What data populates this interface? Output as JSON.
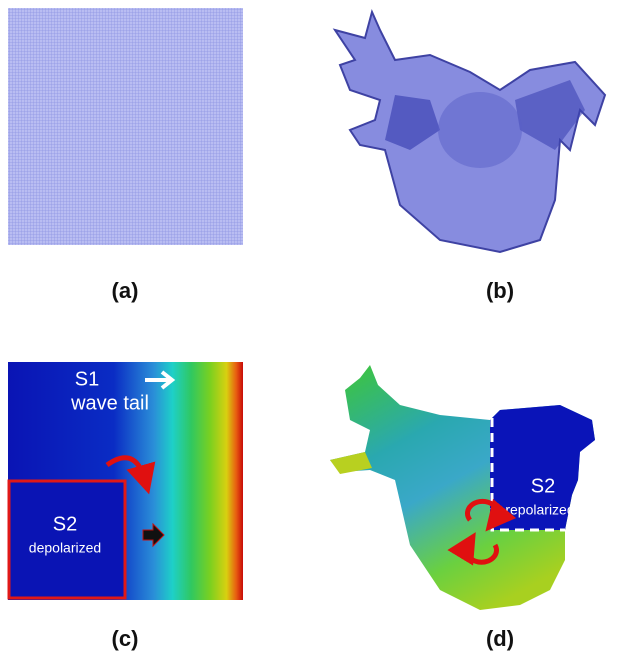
{
  "panels": [
    {
      "label": "(a)"
    },
    {
      "label": "(b)"
    },
    {
      "label": "(c)",
      "annotations": [
        "S1",
        "wave tail",
        "S2",
        "depolarized"
      ]
    },
    {
      "label": "(d)",
      "annotations": [
        "S2",
        "repolarized"
      ]
    }
  ]
}
